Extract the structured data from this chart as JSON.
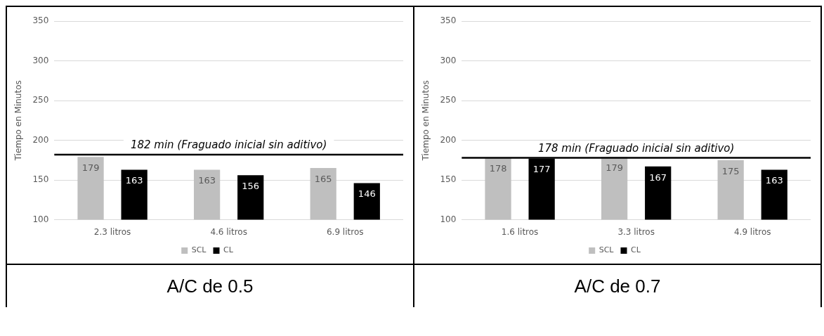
{
  "chart_data": [
    {
      "type": "bar",
      "title": "A/C de 0.5",
      "ylabel": "Tiempo en Minutos",
      "categories": [
        "2.3 litros",
        "4.6 litros",
        "6.9 litros"
      ],
      "series": [
        {
          "name": "SCL",
          "color": "#bfbfbf",
          "values": [
            179,
            163,
            165
          ]
        },
        {
          "name": "CL",
          "color": "#000000",
          "values": [
            163,
            156,
            146
          ]
        }
      ],
      "ylim": [
        100,
        350
      ],
      "yticks": [
        100,
        150,
        200,
        250,
        300,
        350
      ],
      "grid": "y",
      "legend": "bottom",
      "data_labels": true,
      "ref_lines": [
        {
          "axis": "y",
          "value": 182,
          "label": "182 min (Fraguado inicial sin aditivo)",
          "color": "#000000"
        }
      ]
    },
    {
      "type": "bar",
      "title": "A/C de 0.7",
      "ylabel": "Tiempo en Minutos",
      "categories": [
        "1.6 litros",
        "3.3 litros",
        "4.9 litros"
      ],
      "series": [
        {
          "name": "SCL",
          "color": "#bfbfbf",
          "values": [
            178,
            179,
            175
          ]
        },
        {
          "name": "CL",
          "color": "#000000",
          "values": [
            177,
            167,
            163
          ]
        }
      ],
      "ylim": [
        100,
        350
      ],
      "yticks": [
        100,
        150,
        200,
        250,
        300,
        350
      ],
      "grid": "y",
      "legend": "bottom",
      "data_labels": true,
      "ref_lines": [
        {
          "axis": "y",
          "value": 178,
          "label": "178 min (Fraguado inicial sin aditivo)",
          "color": "#000000"
        }
      ]
    }
  ]
}
